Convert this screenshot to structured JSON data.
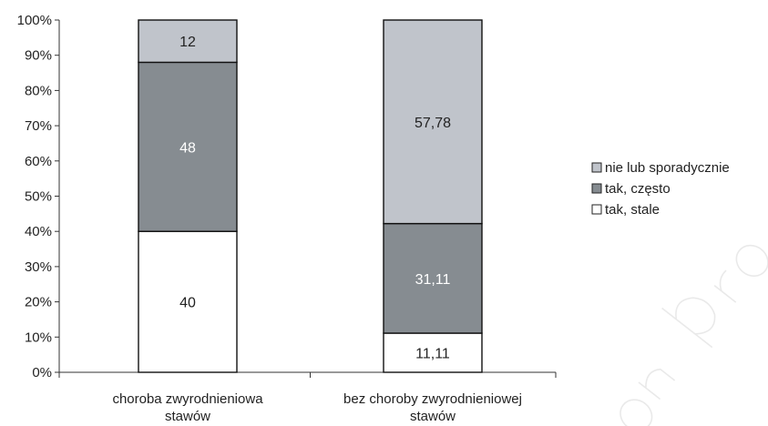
{
  "chart_data": {
    "type": "bar",
    "stacked": true,
    "categories": [
      "choroba zwyrodnieniowa stawów",
      "bez choroby zwyrodnieniowej stawów"
    ],
    "category_lines": [
      [
        "choroba zwyrodnieniowa",
        "stawów"
      ],
      [
        "bez choroby zwyrodnieniowej",
        "stawów"
      ]
    ],
    "series": [
      {
        "name": "tak, stale",
        "values": [
          40,
          11.11
        ],
        "labels": [
          "40",
          "11,11"
        ],
        "color": "#ffffff",
        "label_color": "#222222"
      },
      {
        "name": "tak, często",
        "values": [
          48,
          31.11
        ],
        "labels": [
          "48",
          "31,11"
        ],
        "color": "#868c91",
        "label_color": "#ffffff"
      },
      {
        "name": "nie lub sporadycznie",
        "values": [
          12,
          57.78
        ],
        "labels": [
          "12",
          "57,78"
        ],
        "color": "#c0c4cb",
        "label_color": "#222222"
      }
    ],
    "yticks": [
      "0%",
      "10%",
      "20%",
      "30%",
      "40%",
      "50%",
      "60%",
      "70%",
      "80%",
      "90%",
      "100%"
    ],
    "ylim": [
      0,
      100
    ],
    "legend_position": "right",
    "legend_order": [
      "nie lub sporadycznie",
      "tak, często",
      "tak, stale"
    ]
  }
}
